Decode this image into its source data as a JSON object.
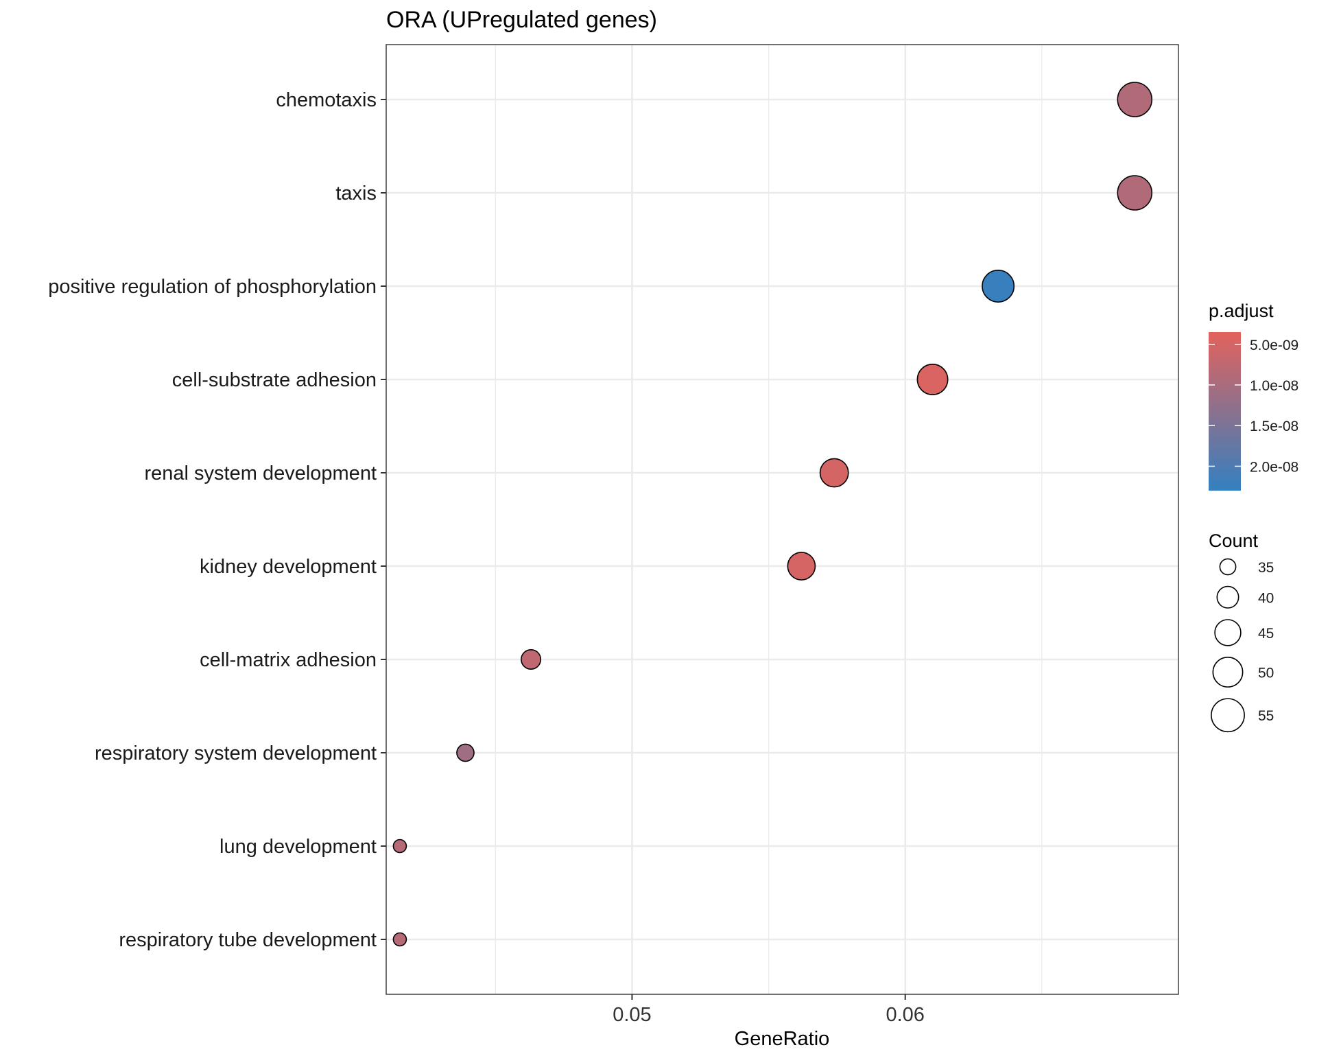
{
  "chart_data": {
    "type": "scatter",
    "title": "ORA (UPregulated genes)",
    "xlabel": "GeneRatio",
    "ylabel": "",
    "xlim": [
      0.041,
      0.07
    ],
    "x_ticks": [
      {
        "value": 0.05,
        "label": "0.05"
      },
      {
        "value": 0.06,
        "label": "0.06"
      }
    ],
    "x_minor_ticks": [
      0.045,
      0.055,
      0.065
    ],
    "grid": true,
    "points": [
      {
        "label": "chemotaxis",
        "gene_ratio": 0.0684,
        "count": 57,
        "p_adjust": 9e-09
      },
      {
        "label": "taxis",
        "gene_ratio": 0.0684,
        "count": 57,
        "p_adjust": 9e-09
      },
      {
        "label": "positive regulation of phosphorylation",
        "gene_ratio": 0.0634,
        "count": 53,
        "p_adjust": 2.25e-08
      },
      {
        "label": "cell-substrate adhesion",
        "gene_ratio": 0.061,
        "count": 51,
        "p_adjust": 4.5e-09
      },
      {
        "label": "renal system development",
        "gene_ratio": 0.0574,
        "count": 48,
        "p_adjust": 5e-09
      },
      {
        "label": "kidney development",
        "gene_ratio": 0.0562,
        "count": 47,
        "p_adjust": 5e-09
      },
      {
        "label": "cell-matrix adhesion",
        "gene_ratio": 0.0463,
        "count": 38,
        "p_adjust": 7.5e-09
      },
      {
        "label": "respiratory system development",
        "gene_ratio": 0.0439,
        "count": 36,
        "p_adjust": 1.1e-08
      },
      {
        "label": "lung development",
        "gene_ratio": 0.0415,
        "count": 33,
        "p_adjust": 8.5e-09
      },
      {
        "label": "respiratory tube development",
        "gene_ratio": 0.0415,
        "count": 33,
        "p_adjust": 8.5e-09
      }
    ],
    "color_legend": {
      "title": "p.adjust",
      "low_color": "#e3625c",
      "high_color": "#3380c0",
      "range": [
        3.5e-09,
        2.3e-08
      ],
      "ticks": [
        {
          "value": 5e-09,
          "label": "5.0e-09"
        },
        {
          "value": 1e-08,
          "label": "1.0e-08"
        },
        {
          "value": 1.5e-08,
          "label": "1.5e-08"
        },
        {
          "value": 2e-08,
          "label": "2.0e-08"
        }
      ]
    },
    "size_legend": {
      "title": "Count",
      "entries": [
        {
          "value": 35,
          "label": "35"
        },
        {
          "value": 40,
          "label": "40"
        },
        {
          "value": 45,
          "label": "45"
        },
        {
          "value": 50,
          "label": "50"
        },
        {
          "value": 55,
          "label": "55"
        }
      ]
    },
    "legend_position": "right"
  }
}
